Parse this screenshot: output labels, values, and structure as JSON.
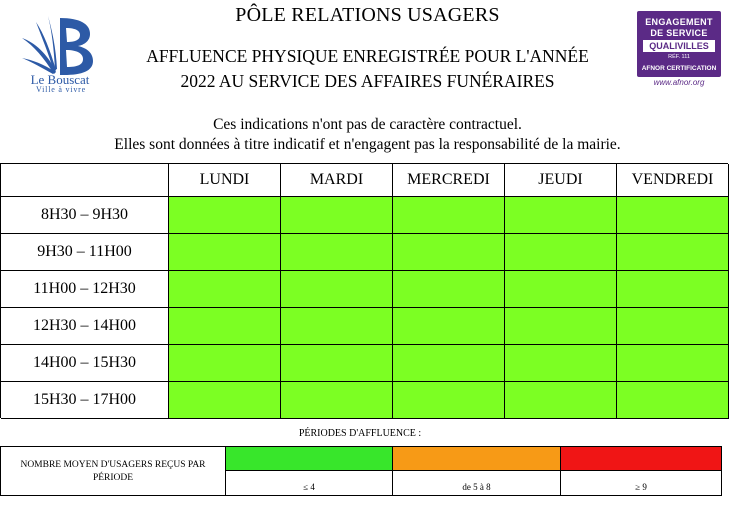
{
  "header": {
    "title": "PÔLE RELATIONS USAGERS",
    "subtitle_line1": "AFFLUENCE PHYSIQUE ENREGISTRÉE POUR L'ANNÉE",
    "subtitle_line2": "2022 AU SERVICE DES AFFAIRES FUNÉRAIRES",
    "disclaimer_line1": "Ces indications n'ont pas de caractère contractuel.",
    "disclaimer_line2": "Elles sont données à titre indicatif et n'engagent pas la responsabilité de la mairie."
  },
  "logo": {
    "name": "Le Bouscat",
    "tagline": "Ville à vivre",
    "color": "#2d5aa6"
  },
  "badge": {
    "line1": "ENGAGEMENT",
    "line2": "DE SERVICE",
    "band": "QUALIVILLES",
    "ref": "RÉF. 111",
    "cert": "AFNOR CERTIFICATION",
    "url": "www.afnor.org",
    "color": "#5b2a86"
  },
  "schedule": {
    "days": [
      "LUNDI",
      "MARDI",
      "MERCREDI",
      "JEUDI",
      "VENDREDI"
    ],
    "slots": [
      "8H30 – 9H30",
      "9H30 – 11H00",
      "11H00 – 12H30",
      "12H30 – 14H00",
      "14H00 – 15H30",
      "15H30 – 17H00"
    ],
    "cell_level": "low",
    "colors": {
      "low": "#7cff23"
    }
  },
  "legend": {
    "periods_label": "PÉRIODES D'AFFLUENCE :",
    "row_label_line1": "NOMBRE MOYEN D'USAGERS REÇUS PAR",
    "row_label_line2": "PÉRIODE",
    "levels": [
      {
        "label": "≤ 4",
        "color": "#38e62b"
      },
      {
        "label": "de 5 à 8",
        "color": "#f79a16"
      },
      {
        "label": "≥ 9",
        "color": "#f01515"
      }
    ]
  }
}
